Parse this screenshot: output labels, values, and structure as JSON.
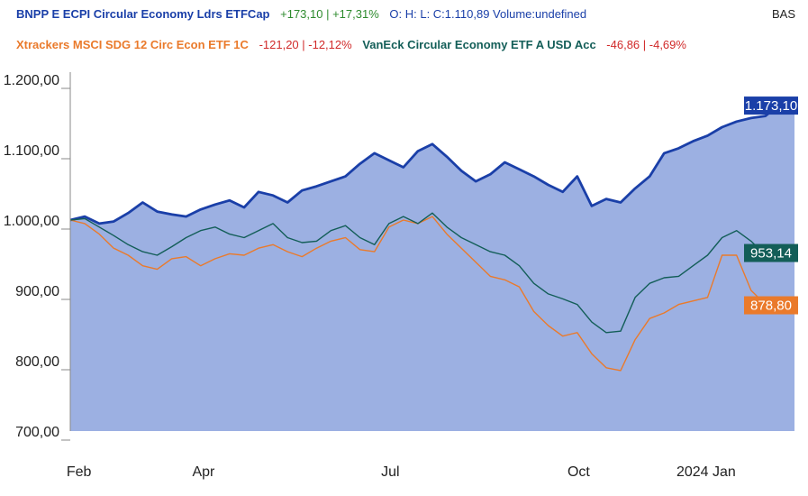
{
  "legend": {
    "s1_name": "BNPP E ECPI Circular Economy Ldrs ETFCap",
    "s1_change": "+173,10 | +17,31%",
    "ohlc": "O: H: L: C:1.110,89 Volume:undefined",
    "s2_name": "Xtrackers MSCI SDG 12 Circ Econ ETF 1C",
    "s2_change": "-121,20 | -12,12%",
    "s3_name": "VanEck Circular Economy ETF A USD Acc",
    "s3_change": "-46,86 | -4,69%",
    "corner": "BAS"
  },
  "colors": {
    "s1": "#1a3fa8",
    "s1_fill": "#9cb0e2",
    "s2": "#ea7a2b",
    "s3": "#135e58",
    "positive": "#2e8b2e",
    "negative": "#d12a2a"
  },
  "chart_data": {
    "type": "line",
    "x_range": [
      0,
      44
    ],
    "ylim": [
      700,
      1200
    ],
    "yticks": [
      700,
      800,
      900,
      1000,
      1100,
      1200
    ],
    "ytick_labels": [
      "700,00",
      "800,00",
      "900,00",
      "1.000,00",
      "1.100,00",
      "1.200,00"
    ],
    "xticks": [
      {
        "x": 0.6,
        "label": "Feb"
      },
      {
        "x": 9.2,
        "label": "Apr"
      },
      {
        "x": 22.1,
        "label": "Jul"
      },
      {
        "x": 35.1,
        "label": "Oct"
      },
      {
        "x": 43.9,
        "label": "2024 Jan"
      }
    ],
    "grid": false,
    "series": [
      {
        "name": "BNPP E ECPI Circular Economy Ldrs ETFCap",
        "area": true,
        "end_label": "1.173,10",
        "x": [
          0,
          1,
          2,
          3,
          4,
          5,
          6,
          7,
          8,
          9,
          10,
          11,
          12,
          13,
          14,
          15,
          16,
          17,
          18,
          19,
          20,
          21,
          22,
          23,
          24,
          25,
          26,
          27,
          28,
          29,
          30,
          31,
          32,
          33,
          34,
          35,
          36,
          37,
          38,
          39,
          40,
          41,
          42,
          43,
          44,
          45,
          46,
          47,
          48,
          49,
          50
        ],
        "values": [
          1000,
          1005,
          995,
          998,
          1010,
          1025,
          1012,
          1008,
          1005,
          1015,
          1022,
          1028,
          1018,
          1040,
          1035,
          1025,
          1042,
          1048,
          1055,
          1062,
          1080,
          1095,
          1085,
          1075,
          1098,
          1108,
          1090,
          1070,
          1055,
          1065,
          1082,
          1072,
          1062,
          1050,
          1040,
          1062,
          1020,
          1030,
          1025,
          1045,
          1062,
          1095,
          1102,
          1112,
          1120,
          1132,
          1140,
          1145,
          1148,
          1165,
          1173
        ]
      },
      {
        "name": "Xtrackers MSCI SDG 12 Circ Econ ETF 1C",
        "end_label": "878,80",
        "x": [
          0,
          1,
          2,
          3,
          4,
          5,
          6,
          7,
          8,
          9,
          10,
          11,
          12,
          13,
          14,
          15,
          16,
          17,
          18,
          19,
          20,
          21,
          22,
          23,
          24,
          25,
          26,
          27,
          28,
          29,
          30,
          31,
          32,
          33,
          34,
          35,
          36,
          37,
          38,
          39,
          40,
          41,
          42,
          43,
          44,
          45,
          46,
          47,
          48,
          49,
          50
        ],
        "values": [
          1000,
          995,
          980,
          960,
          950,
          935,
          930,
          945,
          948,
          935,
          945,
          952,
          950,
          960,
          965,
          955,
          948,
          960,
          970,
          975,
          958,
          955,
          990,
          1000,
          995,
          1005,
          980,
          960,
          940,
          920,
          915,
          905,
          870,
          850,
          835,
          840,
          810,
          790,
          786,
          830,
          860,
          868,
          880,
          885,
          890,
          950,
          950,
          900,
          880,
          875,
          878.8
        ]
      },
      {
        "name": "VanEck Circular Economy ETF A USD Acc",
        "end_label": "953,14",
        "x": [
          0,
          1,
          2,
          3,
          4,
          5,
          6,
          7,
          8,
          9,
          10,
          11,
          12,
          13,
          14,
          15,
          16,
          17,
          18,
          19,
          20,
          21,
          22,
          23,
          24,
          25,
          26,
          27,
          28,
          29,
          30,
          31,
          32,
          33,
          34,
          35,
          36,
          37,
          38,
          39,
          40,
          41,
          42,
          43,
          44,
          45,
          46,
          47,
          48,
          49,
          50
        ],
        "values": [
          1000,
          1002,
          990,
          978,
          965,
          955,
          950,
          962,
          975,
          985,
          990,
          980,
          975,
          985,
          995,
          975,
          968,
          970,
          985,
          992,
          975,
          965,
          995,
          1005,
          995,
          1010,
          990,
          975,
          965,
          955,
          950,
          935,
          910,
          895,
          888,
          880,
          855,
          840,
          842,
          890,
          910,
          918,
          920,
          935,
          950,
          975,
          985,
          970,
          950,
          952,
          953.14
        ]
      }
    ]
  }
}
